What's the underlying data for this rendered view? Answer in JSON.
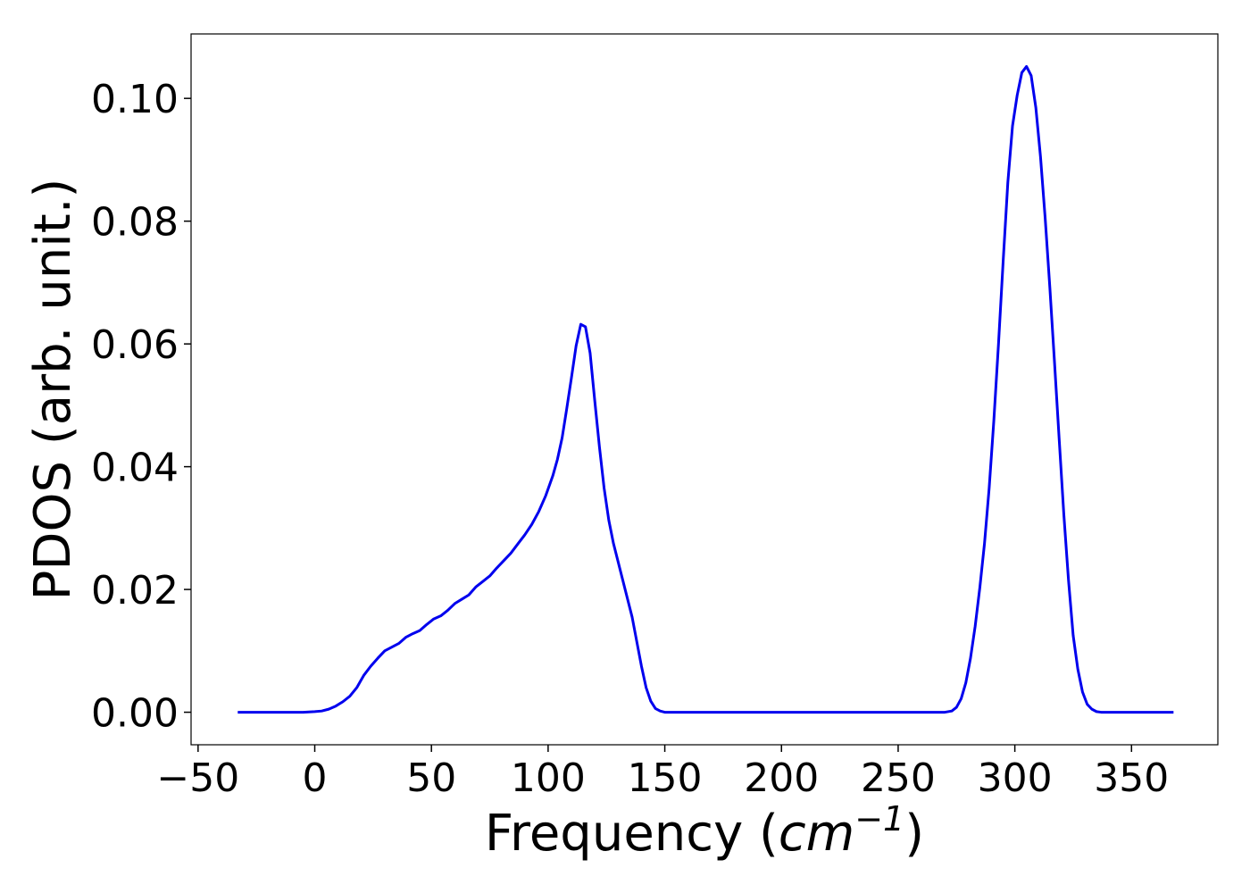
{
  "chart_data": {
    "type": "line",
    "title": "",
    "xlabel": "Frequency (",
    "xlabel_math_base": "cm",
    "xlabel_math_exp": "−1",
    "xlabel_close": ")",
    "ylabel": "PDOS (arb. unit.)",
    "xlim": [
      -53,
      387
    ],
    "ylim": [
      -0.0053,
      0.1105
    ],
    "xticks": [
      -50,
      0,
      50,
      100,
      150,
      200,
      250,
      300,
      350
    ],
    "xtick_labels": [
      "−50",
      "0",
      "50",
      "100",
      "150",
      "200",
      "250",
      "300",
      "350"
    ],
    "yticks": [
      0.0,
      0.02,
      0.04,
      0.06,
      0.08,
      0.1
    ],
    "ytick_labels": [
      "0.00",
      "0.02",
      "0.04",
      "0.06",
      "0.08",
      "0.10"
    ],
    "grid": false,
    "legend": "none",
    "series": [
      {
        "color": "#0000ee",
        "x": [
          -33,
          -20,
          -10,
          -5,
          0,
          3,
          6,
          9,
          12,
          15,
          18,
          21,
          24,
          27,
          30,
          33,
          36,
          39,
          42,
          45,
          48,
          51,
          54,
          57,
          60,
          63,
          66,
          69,
          72,
          75,
          78,
          81,
          84,
          87,
          90,
          93,
          96,
          99,
          102,
          104,
          106,
          108,
          110,
          112,
          114,
          116,
          118,
          120,
          122,
          124,
          126,
          128,
          130,
          132,
          134,
          136,
          138,
          140,
          142,
          144,
          146,
          148,
          150,
          155,
          170,
          200,
          250,
          270,
          273,
          275,
          277,
          279,
          281,
          283,
          285,
          287,
          289,
          291,
          293,
          295,
          297,
          299,
          301,
          303,
          305,
          307,
          309,
          311,
          313,
          315,
          317,
          319,
          321,
          323,
          325,
          327,
          329,
          331,
          333,
          335,
          337,
          339,
          341,
          343,
          345,
          350,
          360,
          368
        ],
        "y": [
          0.0,
          0.0,
          0.0,
          0.0,
          0.0001,
          0.0002,
          0.0005,
          0.001,
          0.0017,
          0.0026,
          0.004,
          0.006,
          0.0075,
          0.0088,
          0.01,
          0.0106,
          0.0112,
          0.0122,
          0.0128,
          0.0133,
          0.0143,
          0.0152,
          0.0157,
          0.0166,
          0.0177,
          0.0184,
          0.0191,
          0.0204,
          0.0213,
          0.0222,
          0.0235,
          0.0247,
          0.0259,
          0.0274,
          0.0289,
          0.0306,
          0.0327,
          0.0353,
          0.0385,
          0.0412,
          0.0447,
          0.0495,
          0.0545,
          0.0597,
          0.0632,
          0.0628,
          0.0585,
          0.0507,
          0.0432,
          0.0365,
          0.0313,
          0.0275,
          0.0245,
          0.0215,
          0.0185,
          0.0155,
          0.0115,
          0.0075,
          0.004,
          0.0018,
          0.0006,
          0.0002,
          0.0,
          0.0,
          0.0,
          0.0,
          0.0,
          0.0,
          0.0002,
          0.0008,
          0.0022,
          0.0048,
          0.0088,
          0.014,
          0.0203,
          0.0275,
          0.0365,
          0.0475,
          0.06,
          0.0735,
          0.0863,
          0.0955,
          0.1005,
          0.1042,
          0.1052,
          0.1037,
          0.0985,
          0.0905,
          0.0805,
          0.0692,
          0.057,
          0.0445,
          0.0322,
          0.0215,
          0.0125,
          0.007,
          0.0033,
          0.0013,
          0.0005,
          0.0001,
          0.0,
          0.0,
          0.0,
          0.0,
          0.0,
          0.0,
          0.0,
          0.0
        ]
      }
    ]
  }
}
